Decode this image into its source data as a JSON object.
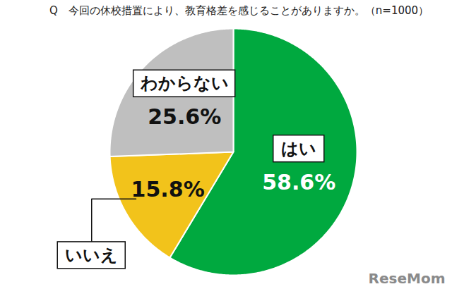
{
  "chart_data": {
    "type": "pie",
    "title": "Q　今回の休校措置により、教育格差を感じることがありますか。（n=1000）",
    "categories": [
      "はい",
      "いいえ",
      "わからない"
    ],
    "values": [
      58.6,
      15.8,
      25.6
    ],
    "value_labels": [
      "58.6%",
      "15.8%",
      "25.6%"
    ],
    "colors": [
      "#00a93f",
      "#f2c31b",
      "#bfbfbf"
    ],
    "data_labels": true,
    "source": "ReseMom"
  }
}
